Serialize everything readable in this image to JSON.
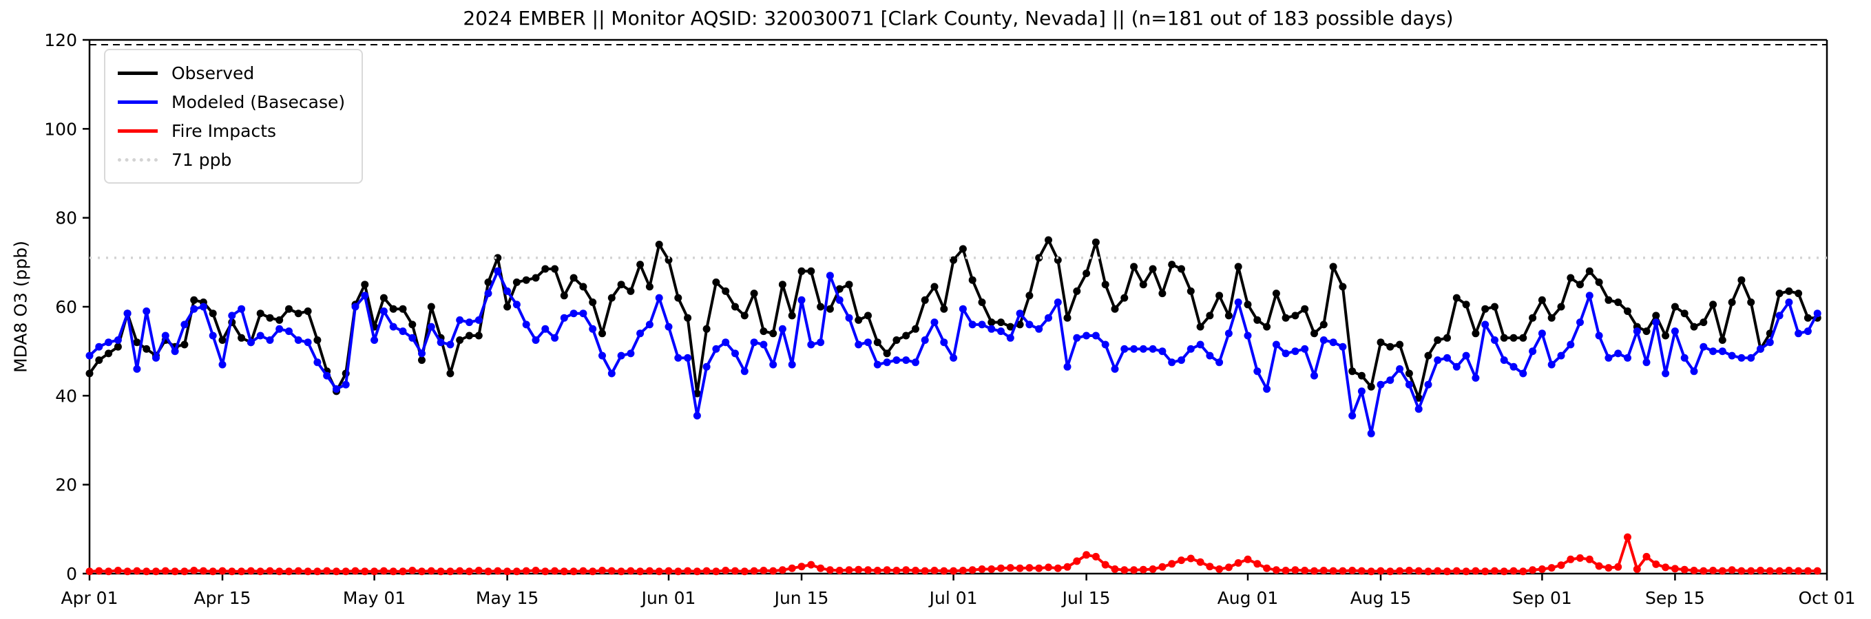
{
  "title": "2024 EMBER || Monitor AQSID: 320030071 [Clark County, Nevada] || (n=181 out of 183 possible days)",
  "axes": {
    "ylabel": "MDA8 O3 (ppb)",
    "ylim": [
      0,
      120
    ],
    "yticks": [
      0,
      20,
      40,
      60,
      80,
      100,
      120
    ],
    "xticks": [
      {
        "day": 0,
        "label": "Apr 01"
      },
      {
        "day": 14,
        "label": "Apr 15"
      },
      {
        "day": 30,
        "label": "May 01"
      },
      {
        "day": 44,
        "label": "May 15"
      },
      {
        "day": 61,
        "label": "Jun 01"
      },
      {
        "day": 75,
        "label": "Jun 15"
      },
      {
        "day": 91,
        "label": "Jul 01"
      },
      {
        "day": 105,
        "label": "Jul 15"
      },
      {
        "day": 122,
        "label": "Aug 01"
      },
      {
        "day": 136,
        "label": "Aug 15"
      },
      {
        "day": 153,
        "label": "Sep 01"
      },
      {
        "day": 167,
        "label": "Sep 15"
      },
      {
        "day": 183,
        "label": "Oct 01"
      }
    ]
  },
  "legend": {
    "items": [
      {
        "label": "Observed",
        "color": "#000000",
        "style": "solid"
      },
      {
        "label": "Modeled (Basecase)",
        "color": "#0000ff",
        "style": "solid"
      },
      {
        "label": "Fire Impacts",
        "color": "#ff0000",
        "style": "solid"
      },
      {
        "label": "71 ppb",
        "color": "#d3d3d3",
        "style": "dotted"
      }
    ]
  },
  "chart_data": {
    "type": "line",
    "title": "2024 EMBER || Monitor AQSID: 320030071 [Clark County, Nevada] || (n=181 out of 183 possible days)",
    "xlabel": "",
    "ylabel": "MDA8 O3 (ppb)",
    "ylim": [
      0,
      120
    ],
    "x_start": "Apr 01",
    "x_end": "Oct 01",
    "x_unit": "day",
    "threshold": {
      "label": "71 ppb",
      "value": 71,
      "color": "#d3d3d3"
    },
    "legend_position": "upper left",
    "grid": false,
    "series": [
      {
        "name": "Observed",
        "color": "#000000",
        "marker": "circle",
        "values": [
          45.0,
          48.0,
          49.5,
          51.0,
          58.5,
          52.0,
          50.5,
          49.0,
          52.5,
          51.0,
          51.5,
          61.5,
          61.0,
          58.5,
          52.5,
          56.5,
          53.0,
          52.0,
          58.5,
          57.5,
          57.0,
          59.5,
          58.5,
          59.0,
          52.5,
          45.5,
          41.0,
          45.0,
          60.5,
          65.0,
          55.5,
          62.0,
          59.5,
          59.5,
          56.0,
          48.0,
          60.0,
          53.0,
          45.0,
          52.5,
          53.5,
          53.5,
          65.5,
          71.0,
          60.0,
          65.5,
          66.0,
          66.5,
          68.5,
          68.5,
          62.5,
          66.5,
          64.5,
          61.0,
          54.0,
          62.0,
          65.0,
          63.5,
          69.5,
          64.5,
          74.0,
          70.5,
          62.0,
          57.5,
          40.5,
          55.0,
          65.5,
          63.5,
          60.0,
          58.0,
          63.0,
          54.5,
          54.0,
          65.0,
          58.0,
          68.0,
          68.0,
          60.0,
          59.5,
          64.0,
          65.0,
          57.0,
          58.0,
          52.0,
          49.5,
          52.5,
          53.5,
          55.0,
          61.5,
          64.5,
          59.5,
          70.5,
          73.0,
          66.0,
          61.0,
          56.5,
          56.5,
          55.5,
          56.0,
          62.5,
          71.0,
          75.0,
          70.5,
          57.5,
          63.5,
          67.5,
          74.5,
          65.0,
          59.5,
          62.0,
          69.0,
          65.0,
          68.5,
          63.0,
          69.5,
          68.5,
          63.5,
          55.5,
          58.0,
          62.5,
          58.0,
          69.0,
          60.5,
          57.0,
          55.5,
          63.0,
          57.5,
          58.0,
          59.5,
          54.0,
          56.0,
          69.0,
          64.5,
          45.5,
          44.5,
          42.0,
          52.0,
          51.0,
          51.5,
          45.0,
          39.5,
          49.0,
          52.5,
          53.0,
          62.0,
          60.5,
          54.0,
          59.5,
          60.0,
          53.0,
          53.0,
          53.0,
          57.5,
          61.5,
          57.5,
          60.0,
          66.5,
          65.0,
          68.0,
          65.5,
          61.5,
          61.0,
          59.0,
          55.5,
          54.5,
          58.0,
          53.5,
          60.0,
          58.5,
          55.5,
          56.5,
          60.5,
          52.5,
          61.0,
          66.0,
          61.0,
          50.5,
          54.0,
          63.0,
          63.5,
          63.0,
          57.5,
          57.5
        ]
      },
      {
        "name": "Modeled (Basecase)",
        "color": "#0000ff",
        "marker": "circle",
        "values": [
          49.0,
          51.0,
          52.0,
          52.5,
          58.5,
          46.0,
          59.0,
          48.5,
          53.5,
          50.0,
          56.0,
          59.5,
          60.0,
          53.5,
          47.0,
          58.0,
          59.5,
          52.0,
          53.5,
          52.5,
          55.0,
          54.5,
          52.5,
          52.0,
          47.5,
          44.5,
          41.5,
          42.5,
          60.0,
          62.5,
          52.5,
          59.0,
          55.5,
          54.5,
          53.0,
          49.5,
          55.5,
          52.0,
          51.5,
          57.0,
          56.5,
          57.0,
          63.0,
          68.0,
          63.5,
          60.5,
          56.0,
          52.5,
          55.0,
          53.0,
          57.5,
          58.5,
          58.5,
          55.0,
          49.0,
          45.0,
          49.0,
          49.5,
          54.0,
          56.0,
          62.0,
          55.5,
          48.5,
          48.5,
          35.5,
          46.5,
          50.5,
          52.0,
          49.5,
          45.5,
          52.0,
          51.5,
          47.0,
          55.0,
          47.0,
          61.5,
          51.5,
          52.0,
          67.0,
          61.5,
          57.5,
          51.5,
          52.0,
          47.0,
          47.5,
          48.0,
          48.0,
          47.5,
          52.5,
          56.5,
          52.0,
          48.5,
          59.5,
          56.0,
          56.0,
          55.0,
          54.5,
          53.0,
          58.5,
          56.0,
          55.0,
          57.5,
          61.0,
          46.5,
          53.0,
          53.5,
          53.5,
          51.5,
          46.0,
          50.5,
          50.5,
          50.5,
          50.5,
          50.0,
          47.5,
          48.0,
          50.5,
          51.5,
          49.0,
          47.5,
          54.0,
          61.0,
          53.5,
          45.5,
          41.5,
          51.5,
          49.5,
          50.0,
          50.5,
          44.5,
          52.5,
          52.0,
          51.0,
          35.5,
          41.0,
          31.5,
          42.5,
          43.5,
          46.0,
          42.5,
          37.0,
          42.5,
          48.0,
          48.5,
          46.5,
          49.0,
          44.0,
          56.0,
          52.5,
          48.0,
          46.5,
          45.0,
          50.0,
          54.0,
          47.0,
          49.0,
          51.5,
          56.5,
          62.5,
          53.5,
          48.5,
          49.5,
          48.5,
          54.5,
          47.5,
          56.5,
          45.0,
          54.5,
          48.5,
          45.5,
          51.0,
          50.0,
          50.0,
          49.0,
          48.5,
          48.5,
          50.5,
          52.0,
          58.0,
          61.0,
          54.0,
          54.5,
          58.5
        ]
      },
      {
        "name": "Fire Impacts",
        "color": "#ff0000",
        "marker": "circle",
        "values": [
          0.5,
          0.6,
          0.5,
          0.7,
          0.5,
          0.6,
          0.5,
          0.5,
          0.6,
          0.5,
          0.5,
          0.7,
          0.6,
          0.5,
          0.6,
          0.5,
          0.5,
          0.6,
          0.5,
          0.6,
          0.5,
          0.5,
          0.6,
          0.5,
          0.5,
          0.6,
          0.5,
          0.5,
          0.6,
          0.5,
          0.5,
          0.6,
          0.5,
          0.5,
          0.7,
          0.5,
          0.6,
          0.5,
          0.5,
          0.6,
          0.5,
          0.7,
          0.5,
          0.6,
          0.5,
          0.5,
          0.6,
          0.7,
          0.5,
          0.6,
          0.5,
          0.5,
          0.6,
          0.5,
          0.7,
          0.6,
          0.5,
          0.6,
          0.5,
          0.6,
          0.5,
          0.6,
          0.5,
          0.6,
          0.5,
          0.6,
          0.5,
          0.7,
          0.6,
          0.5,
          0.6,
          0.7,
          0.6,
          0.8,
          1.2,
          1.6,
          2.0,
          1.2,
          0.8,
          0.7,
          0.8,
          0.9,
          0.8,
          0.7,
          0.8,
          0.7,
          0.8,
          0.7,
          0.6,
          0.7,
          0.6,
          0.6,
          0.7,
          0.8,
          1.0,
          1.0,
          1.2,
          1.3,
          1.2,
          1.3,
          1.2,
          1.4,
          1.2,
          1.5,
          2.8,
          4.2,
          3.8,
          2.0,
          1.0,
          0.8,
          0.8,
          0.9,
          1.0,
          1.5,
          2.2,
          3.0,
          3.4,
          2.6,
          1.6,
          1.0,
          1.4,
          2.4,
          3.2,
          2.2,
          1.2,
          0.8,
          0.7,
          0.8,
          0.7,
          0.6,
          0.7,
          0.6,
          0.6,
          0.7,
          0.6,
          0.5,
          0.6,
          0.5,
          0.6,
          0.7,
          0.6,
          0.5,
          0.6,
          0.5,
          0.6,
          0.5,
          0.6,
          0.5,
          0.6,
          0.5,
          0.6,
          0.5,
          0.8,
          1.0,
          1.3,
          1.9,
          3.2,
          3.5,
          3.2,
          1.7,
          1.3,
          1.5,
          8.2,
          1.0,
          3.8,
          2.1,
          1.4,
          1.1,
          0.9,
          0.7,
          0.6,
          0.7,
          0.6,
          0.8,
          0.6,
          0.6,
          0.7,
          0.6,
          0.6,
          0.7,
          0.6,
          0.6,
          0.6
        ]
      }
    ]
  }
}
